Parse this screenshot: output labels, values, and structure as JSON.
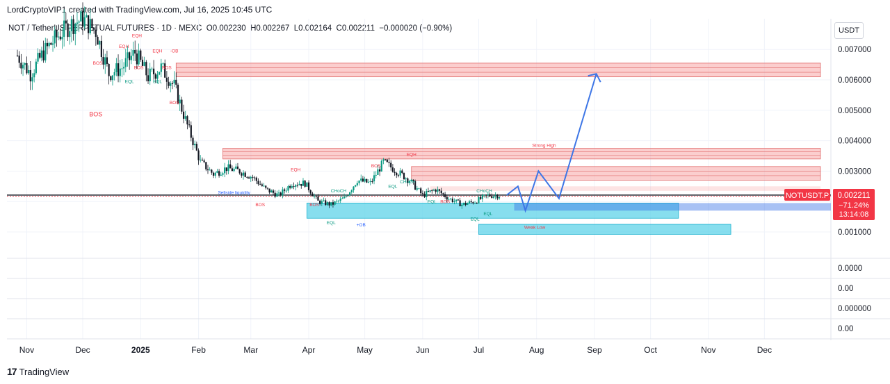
{
  "header": {
    "caption": "LordCryptoVIP1 created with TradingView.com, Jul 16, 2025 10:45 UTC",
    "legend": {
      "symbol": "NOT / TetherUS PERPETUAL FUTURES · 1D · MEXC",
      "open": "O0.002230",
      "high": "H0.002267",
      "low": "L0.002164",
      "close": "C0.002211",
      "change": "−0.000020 (−0.90%)"
    },
    "currency_button": "USDT"
  },
  "price_tag": {
    "symbol": "NOTUSDT.P",
    "price": "0.002211",
    "change_pct": "−71.24%",
    "countdown": "13:14:08"
  },
  "footer": {
    "brand": "TradingView"
  },
  "colors": {
    "up_candle": "#089981",
    "down_candle": "#f23645",
    "supply_zone": "#f7a5a5",
    "demand_zone": "#5fd3e8",
    "projection": "#3d76e6",
    "price_tag": "#f23645"
  },
  "chart_data": {
    "type": "candlestick",
    "y_axis": {
      "range": [
        0,
        0.0075
      ],
      "tick_values": [
        0.001,
        0.002,
        0.003,
        0.004,
        0.005,
        0.006,
        0.007
      ],
      "tick_labels": [
        "0.001000",
        "",
        "0.003000",
        "0.004000",
        "0.005000",
        "0.006000",
        "0.007000"
      ]
    },
    "x_axis": {
      "tick_labels": [
        "Nov",
        "Dec",
        "2025",
        "Feb",
        "Mar",
        "Apr",
        "May",
        "Jun",
        "Jul",
        "Aug",
        "Sep",
        "Oct",
        "Nov",
        "Dec"
      ]
    },
    "price_path": [
      [
        "2024-10-27",
        0.0068
      ],
      [
        "2024-11-03",
        0.0062
      ],
      [
        "2024-11-10",
        0.0069
      ],
      [
        "2024-11-17",
        0.0074
      ],
      [
        "2024-11-24",
        0.0078
      ],
      [
        "2024-12-01",
        0.008
      ],
      [
        "2024-12-08",
        0.0076
      ],
      [
        "2024-12-15",
        0.0062
      ],
      [
        "2024-12-22",
        0.0064
      ],
      [
        "2024-12-29",
        0.0069
      ],
      [
        "2025-01-05",
        0.0061
      ],
      [
        "2025-01-12",
        0.0064
      ],
      [
        "2025-01-19",
        0.0058
      ],
      [
        "2025-01-26",
        0.0045
      ],
      [
        "2025-02-02",
        0.0033
      ],
      [
        "2025-02-09",
        0.0029
      ],
      [
        "2025-02-16",
        0.0031
      ],
      [
        "2025-02-23",
        0.003
      ],
      [
        "2025-03-02",
        0.0028
      ],
      [
        "2025-03-09",
        0.0024
      ],
      [
        "2025-03-16",
        0.0022
      ],
      [
        "2025-03-23",
        0.0026
      ],
      [
        "2025-03-30",
        0.0026
      ],
      [
        "2025-04-06",
        0.002
      ],
      [
        "2025-04-13",
        0.0019
      ],
      [
        "2025-04-20",
        0.0021
      ],
      [
        "2025-04-27",
        0.0027
      ],
      [
        "2025-05-04",
        0.0026
      ],
      [
        "2025-05-11",
        0.0033
      ],
      [
        "2025-05-18",
        0.003
      ],
      [
        "2025-05-25",
        0.0027
      ],
      [
        "2025-06-01",
        0.0022
      ],
      [
        "2025-06-08",
        0.0024
      ],
      [
        "2025-06-15",
        0.0021
      ],
      [
        "2025-06-22",
        0.0019
      ],
      [
        "2025-06-29",
        0.002
      ],
      [
        "2025-07-06",
        0.0022
      ],
      [
        "2025-07-13",
        0.0022
      ]
    ],
    "last_price": 0.002211,
    "horizontal_line": 0.002211,
    "zones": [
      {
        "kind": "supply",
        "date_from": "2025-01-20",
        "date_to": "2025-12-31",
        "top": 0.00655,
        "bottom": 0.0061
      },
      {
        "kind": "supply",
        "date_from": "2025-02-14",
        "date_to": "2025-12-31",
        "top": 0.00375,
        "bottom": 0.0034,
        "label": "Strong High"
      },
      {
        "kind": "supply",
        "date_from": "2025-05-26",
        "date_to": "2025-12-31",
        "top": 0.00315,
        "bottom": 0.0027
      },
      {
        "kind": "supply-light",
        "date_from": "2025-06-05",
        "date_to": "2025-12-31",
        "top": 0.0025,
        "bottom": 0.00235
      },
      {
        "kind": "demand",
        "date_from": "2025-03-31",
        "date_to": "2025-10-16",
        "top": 0.00195,
        "bottom": 0.00145
      },
      {
        "kind": "demand",
        "date_from": "2025-07-01",
        "date_to": "2025-11-13",
        "top": 0.00125,
        "bottom": 0.00092,
        "label": "Weak Low"
      }
    ],
    "projection": [
      [
        "2025-07-16",
        0.00221
      ],
      [
        "2025-07-22",
        0.0025
      ],
      [
        "2025-07-26",
        0.0017
      ],
      [
        "2025-08-02",
        0.003
      ],
      [
        "2025-08-13",
        0.0021
      ],
      [
        "2025-09-02",
        0.0062
      ]
    ],
    "annotations": [
      {
        "text": "EQH",
        "date": "2024-12-23",
        "value": 0.00705
      },
      {
        "text": "EQH",
        "date": "2024-12-30",
        "value": 0.0074
      },
      {
        "text": "EQH",
        "date": "2025-01-10",
        "value": 0.0069
      },
      {
        "text": "-OB",
        "date": "2025-01-19",
        "value": 0.0069
      },
      {
        "text": "BOS",
        "date": "2024-12-09",
        "value": 0.0065
      },
      {
        "text": "BOS",
        "date": "2024-12-31",
        "value": 0.00635
      },
      {
        "text": "BOS",
        "date": "2025-01-15",
        "value": 0.00635
      },
      {
        "text": "EQL",
        "date": "2024-12-26",
        "value": 0.0059
      },
      {
        "text": "EQL",
        "date": "2025-01-10",
        "value": 0.0059
      },
      {
        "text": "BOS",
        "date": "2024-12-08",
        "value": 0.0048
      },
      {
        "text": "BOS",
        "date": "2025-01-19",
        "value": 0.0052
      },
      {
        "text": "EQH",
        "date": "2025-03-25",
        "value": 0.003
      },
      {
        "text": "Sellside liquidity",
        "date": "2025-02-20",
        "value": 0.00225
      },
      {
        "text": "BOS",
        "date": "2025-03-06",
        "value": 0.00185
      },
      {
        "text": "BOS",
        "date": "2025-04-04",
        "value": 0.00185
      },
      {
        "text": "CHoCH",
        "date": "2025-04-17",
        "value": 0.0023
      },
      {
        "text": "EQL",
        "date": "2025-04-13",
        "value": 0.00125
      },
      {
        "text": "+OB",
        "date": "2025-04-29",
        "value": 0.00118
      },
      {
        "text": "BOS",
        "date": "2025-05-07",
        "value": 0.00312
      },
      {
        "text": "EQH",
        "date": "2025-05-26",
        "value": 0.0035
      },
      {
        "text": "CHoCH",
        "date": "2025-05-24",
        "value": 0.0026
      },
      {
        "text": "EQL",
        "date": "2025-05-16",
        "value": 0.00245
      },
      {
        "text": "EQL",
        "date": "2025-06-06",
        "value": 0.00195
      },
      {
        "text": "BOS",
        "date": "2025-06-13",
        "value": 0.00195
      },
      {
        "text": "EQL",
        "date": "2025-06-29",
        "value": 0.00138
      },
      {
        "text": "EQL",
        "date": "2025-07-06",
        "value": 0.00155
      },
      {
        "text": "CHoCH",
        "date": "2025-07-04",
        "value": 0.0023
      },
      {
        "text": "Weak Low",
        "date": "2025-07-31",
        "value": 0.0011
      },
      {
        "text": "Strong High",
        "date": "2025-08-05",
        "value": 0.0038
      }
    ],
    "lower_panes": [
      {
        "label": "0.0000"
      },
      {
        "label": "0.00"
      },
      {
        "label": "0.000000"
      },
      {
        "label": "0.00"
      }
    ]
  }
}
